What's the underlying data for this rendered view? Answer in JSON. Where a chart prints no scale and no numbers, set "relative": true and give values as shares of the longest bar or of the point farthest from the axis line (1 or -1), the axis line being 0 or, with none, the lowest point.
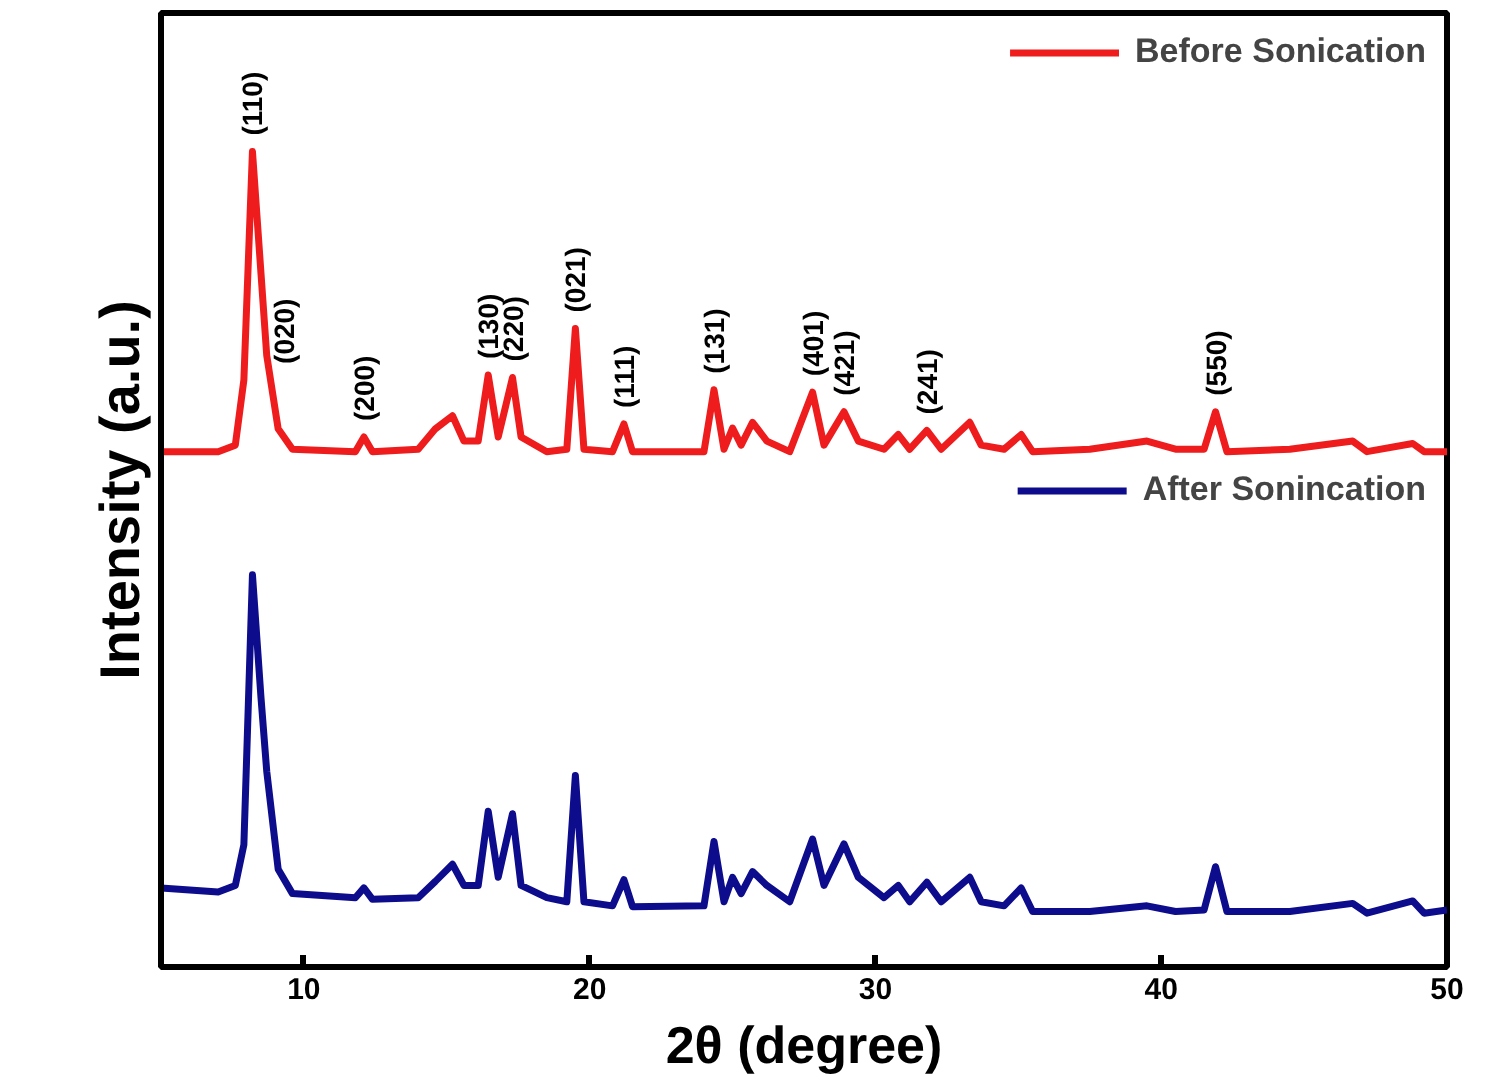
{
  "chart_data": {
    "type": "line",
    "relative": true,
    "xlabel": "2θ (degree)",
    "ylabel": "Intensity (a.u.)",
    "xlim": [
      5,
      50
    ],
    "xticks": [
      10,
      20,
      30,
      40,
      50
    ],
    "grid": false,
    "legend": "top right",
    "marker": "none",
    "line_style": "solid",
    "series": [
      {
        "name": "Before Sonication",
        "color": "#ee1c1c",
        "x": [
          5.0,
          7.0,
          7.6,
          7.9,
          8.2,
          8.5,
          8.7,
          9.1,
          9.6,
          11.8,
          12.1,
          12.4,
          14.0,
          14.6,
          15.2,
          15.6,
          16.1,
          16.45,
          16.8,
          17.3,
          17.6,
          18.5,
          19.2,
          19.5,
          19.8,
          20.8,
          21.2,
          21.5,
          24.0,
          24.35,
          24.7,
          25.0,
          25.3,
          25.7,
          26.2,
          27.0,
          27.8,
          28.2,
          28.9,
          29.4,
          30.3,
          30.8,
          31.2,
          31.8,
          32.3,
          33.3,
          33.7,
          34.5,
          35.1,
          35.5,
          37.5,
          39.5,
          40.5,
          41.5,
          41.9,
          42.3,
          44.5,
          46.7,
          47.2,
          48.8,
          49.2,
          50.0
        ],
        "values": [
          0.632,
          0.632,
          0.64,
          0.72,
          1.0,
          0.85,
          0.75,
          0.66,
          0.635,
          0.632,
          0.65,
          0.632,
          0.635,
          0.66,
          0.676,
          0.645,
          0.645,
          0.726,
          0.65,
          0.723,
          0.65,
          0.632,
          0.635,
          0.783,
          0.635,
          0.632,
          0.666,
          0.632,
          0.632,
          0.708,
          0.635,
          0.661,
          0.64,
          0.668,
          0.645,
          0.632,
          0.705,
          0.64,
          0.681,
          0.645,
          0.635,
          0.653,
          0.635,
          0.658,
          0.635,
          0.668,
          0.64,
          0.635,
          0.653,
          0.632,
          0.635,
          0.645,
          0.635,
          0.635,
          0.681,
          0.632,
          0.635,
          0.645,
          0.632,
          0.642,
          0.632,
          0.632
        ]
      },
      {
        "name": "After Sonincation",
        "color": "#0c0c8c",
        "x": [
          5.0,
          7.0,
          7.6,
          7.9,
          8.2,
          8.5,
          8.7,
          9.1,
          9.6,
          11.8,
          12.1,
          12.4,
          14.0,
          14.6,
          15.2,
          15.6,
          16.1,
          16.45,
          16.8,
          17.3,
          17.6,
          18.5,
          19.2,
          19.5,
          19.8,
          20.8,
          21.2,
          21.5,
          24.0,
          24.35,
          24.7,
          25.0,
          25.3,
          25.7,
          26.2,
          27.0,
          27.8,
          28.2,
          28.9,
          29.4,
          30.3,
          30.8,
          31.2,
          31.8,
          32.3,
          33.3,
          33.7,
          34.5,
          35.1,
          35.5,
          37.5,
          39.5,
          40.5,
          41.5,
          41.9,
          42.3,
          44.5,
          46.7,
          47.2,
          48.8,
          49.2,
          50.0
        ],
        "values": [
          0.097,
          0.092,
          0.1,
          0.15,
          0.481,
          0.33,
          0.24,
          0.12,
          0.09,
          0.085,
          0.097,
          0.083,
          0.085,
          0.105,
          0.126,
          0.1,
          0.1,
          0.191,
          0.11,
          0.188,
          0.1,
          0.085,
          0.08,
          0.235,
          0.08,
          0.075,
          0.107,
          0.074,
          0.075,
          0.154,
          0.08,
          0.11,
          0.09,
          0.117,
          0.1,
          0.08,
          0.157,
          0.1,
          0.151,
          0.11,
          0.085,
          0.1,
          0.08,
          0.104,
          0.08,
          0.11,
          0.08,
          0.075,
          0.097,
          0.068,
          0.068,
          0.075,
          0.068,
          0.07,
          0.123,
          0.068,
          0.068,
          0.078,
          0.066,
          0.081,
          0.066,
          0.07
        ]
      }
    ],
    "annotations": [
      {
        "text": "(110)",
        "x": 8.2,
        "y": 1.0
      },
      {
        "text": "(020)",
        "x": 9.3,
        "y": 0.72
      },
      {
        "text": "(200)",
        "x": 12.1,
        "y": 0.65
      },
      {
        "text": "(130)",
        "x": 16.45,
        "y": 0.726
      },
      {
        "text": "(220)",
        "x": 17.3,
        "y": 0.723
      },
      {
        "text": "(021)",
        "x": 19.5,
        "y": 0.783
      },
      {
        "text": "(111)",
        "x": 21.2,
        "y": 0.666
      },
      {
        "text": "(131)",
        "x": 24.35,
        "y": 0.708
      },
      {
        "text": "(401)",
        "x": 27.8,
        "y": 0.705
      },
      {
        "text": "(421)",
        "x": 28.9,
        "y": 0.681
      },
      {
        "text": "(241)",
        "x": 31.8,
        "y": 0.658
      },
      {
        "text": "(550)",
        "x": 41.9,
        "y": 0.681
      }
    ]
  }
}
